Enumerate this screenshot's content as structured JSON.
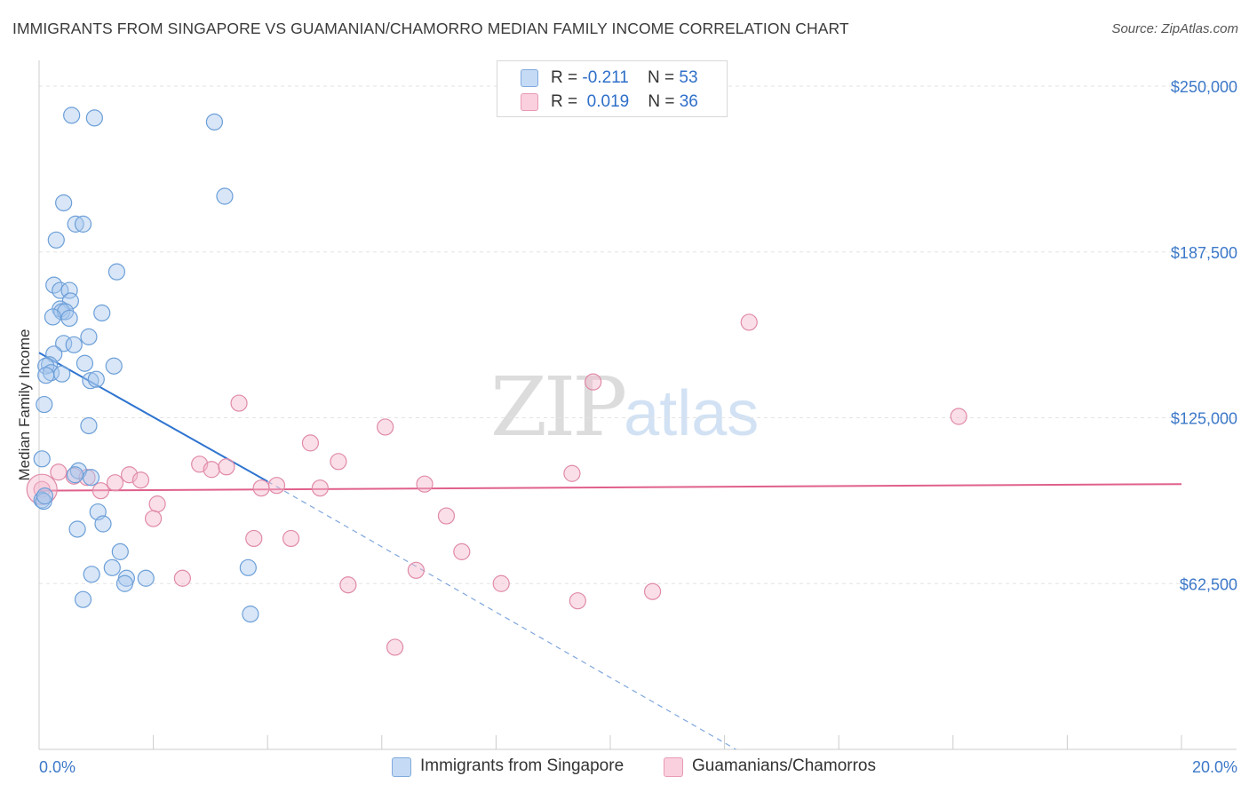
{
  "title": "IMMIGRANTS FROM SINGAPORE VS GUAMANIAN/CHAMORRO MEDIAN FAMILY INCOME CORRELATION CHART",
  "source": "Source: ZipAtlas.com",
  "watermark": {
    "zip": "ZIP",
    "atlas": "atlas"
  },
  "legend": {
    "r_label": "R =",
    "n_label": "N =",
    "rows": [
      {
        "r": "-0.211",
        "n": "53",
        "color": "#a9c8ee"
      },
      {
        "r": "0.019",
        "n": "36",
        "color": "#f5b8cc"
      }
    ]
  },
  "bottom_legend": {
    "series1": "Immigrants from Singapore",
    "series2": "Guamanians/Chamorros"
  },
  "chart_data": {
    "type": "scatter",
    "title": "IMMIGRANTS FROM SINGAPORE VS GUAMANIAN/CHAMORRO MEDIAN FAMILY INCOME CORRELATION CHART",
    "xlabel": "",
    "ylabel": "Median Family Income",
    "xlim": [
      0,
      20
    ],
    "ylim": [
      0,
      250000
    ],
    "x_tick_labels": [
      "0.0%",
      "20.0%"
    ],
    "y_ticks": [
      62500,
      125000,
      187500,
      250000
    ],
    "y_tick_labels": [
      "$62,500",
      "$125,000",
      "$187,500",
      "$250,000"
    ],
    "grid": true,
    "series": [
      {
        "name": "Immigrants from Singapore",
        "color": "#a9c8ee",
        "stroke": "#6c9fd8",
        "points": [
          [
            0.57,
            239000
          ],
          [
            0.97,
            238000
          ],
          [
            3.07,
            236500
          ],
          [
            0.43,
            206000
          ],
          [
            0.64,
            198000
          ],
          [
            0.77,
            198000
          ],
          [
            3.25,
            208500
          ],
          [
            0.3,
            192000
          ],
          [
            1.36,
            180000
          ],
          [
            0.26,
            175000
          ],
          [
            0.37,
            173000
          ],
          [
            0.53,
            173000
          ],
          [
            0.55,
            169000
          ],
          [
            0.37,
            166000
          ],
          [
            0.4,
            165000
          ],
          [
            0.46,
            165000
          ],
          [
            1.1,
            164500
          ],
          [
            0.24,
            163000
          ],
          [
            0.53,
            162500
          ],
          [
            0.43,
            153000
          ],
          [
            0.61,
            152500
          ],
          [
            0.87,
            155500
          ],
          [
            0.26,
            149000
          ],
          [
            0.18,
            145000
          ],
          [
            0.12,
            144500
          ],
          [
            0.8,
            145500
          ],
          [
            1.31,
            144500
          ],
          [
            0.21,
            142000
          ],
          [
            0.4,
            141500
          ],
          [
            0.12,
            141000
          ],
          [
            0.9,
            139000
          ],
          [
            1.0,
            139500
          ],
          [
            0.09,
            130000
          ],
          [
            0.87,
            122000
          ],
          [
            0.05,
            109500
          ],
          [
            0.69,
            105000
          ],
          [
            0.63,
            103500
          ],
          [
            0.91,
            102500
          ],
          [
            1.03,
            89500
          ],
          [
            1.12,
            85000
          ],
          [
            0.67,
            83000
          ],
          [
            1.42,
            74500
          ],
          [
            1.28,
            68500
          ],
          [
            0.92,
            66000
          ],
          [
            1.53,
            64500
          ],
          [
            1.87,
            64500
          ],
          [
            3.66,
            68500
          ],
          [
            1.5,
            62500
          ],
          [
            0.77,
            56500
          ],
          [
            3.7,
            51000
          ],
          [
            0.05,
            94000
          ],
          [
            0.08,
            93500
          ],
          [
            0.1,
            95500
          ]
        ],
        "trend": {
          "x": [
            0,
            4
          ],
          "y": [
            149500,
            101000
          ]
        },
        "trend_extension": {
          "x": [
            4,
            12.2
          ],
          "y": [
            101000,
            0
          ]
        }
      },
      {
        "name": "Guamanians/Chamorros",
        "color": "#f5b8cc",
        "stroke": "#e08aa8",
        "points": [
          [
            0.05,
            98000
          ],
          [
            0.34,
            104500
          ],
          [
            0.61,
            103000
          ],
          [
            0.84,
            102500
          ],
          [
            1.08,
            97500
          ],
          [
            1.33,
            100500
          ],
          [
            1.58,
            103500
          ],
          [
            1.78,
            101500
          ],
          [
            2.07,
            92500
          ],
          [
            2.0,
            87000
          ],
          [
            2.51,
            64500
          ],
          [
            2.81,
            107500
          ],
          [
            3.02,
            105500
          ],
          [
            3.28,
            106500
          ],
          [
            3.5,
            130500
          ],
          [
            3.76,
            79500
          ],
          [
            3.89,
            98500
          ],
          [
            4.16,
            99500
          ],
          [
            4.41,
            79500
          ],
          [
            4.75,
            115500
          ],
          [
            4.92,
            98500
          ],
          [
            5.24,
            108500
          ],
          [
            5.41,
            62000
          ],
          [
            6.06,
            121500
          ],
          [
            6.23,
            38500
          ],
          [
            6.6,
            67500
          ],
          [
            6.75,
            100000
          ],
          [
            7.13,
            88000
          ],
          [
            7.4,
            74500
          ],
          [
            8.09,
            62500
          ],
          [
            9.33,
            104000
          ],
          [
            9.43,
            56000
          ],
          [
            9.7,
            138500
          ],
          [
            10.74,
            59500
          ],
          [
            12.43,
            161000
          ],
          [
            16.1,
            125500
          ]
        ],
        "trend": {
          "x": [
            0,
            20
          ],
          "y": [
            97500,
            100000
          ]
        }
      }
    ]
  }
}
